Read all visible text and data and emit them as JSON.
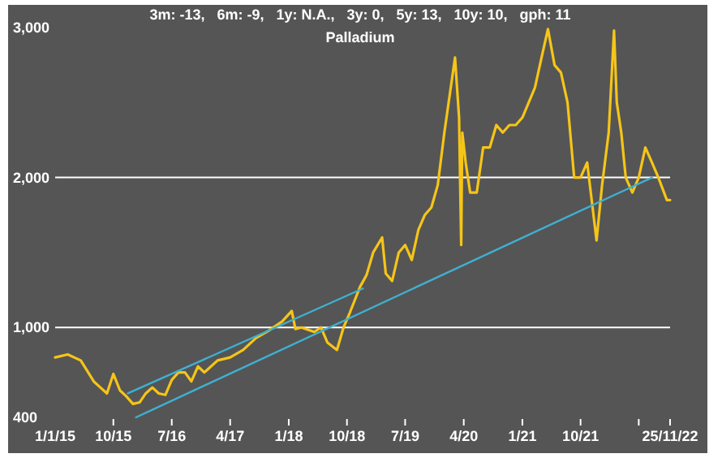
{
  "chart_data": {
    "type": "line",
    "title": "Palladium",
    "subtitle": "3m: -13,   6m: -9,   1y: N.A.,   3y: 0,   5y: 13,   10y: 10,   gph: 11",
    "x": [
      "2015-01-01",
      "2015-03-01",
      "2015-05-01",
      "2015-07-01",
      "2015-08-01",
      "2015-09-01",
      "2015-10-01",
      "2015-11-01",
      "2015-12-01",
      "2016-01-01",
      "2016-02-01",
      "2016-03-01",
      "2016-04-01",
      "2016-05-01",
      "2016-06-01",
      "2016-07-01",
      "2016-08-01",
      "2016-09-01",
      "2016-10-01",
      "2016-11-01",
      "2016-12-01",
      "2017-02-01",
      "2017-04-01",
      "2017-06-01",
      "2017-08-01",
      "2017-10-01",
      "2017-12-01",
      "2018-01-15",
      "2018-02-01",
      "2018-03-01",
      "2018-05-01",
      "2018-06-01",
      "2018-07-01",
      "2018-08-15",
      "2018-09-15",
      "2018-10-15",
      "2018-12-01",
      "2019-01-01",
      "2019-02-01",
      "2019-03-15",
      "2019-04-01",
      "2019-05-01",
      "2019-06-01",
      "2019-07-01",
      "2019-08-01",
      "2019-09-01",
      "2019-10-01",
      "2019-11-01",
      "2019-12-01",
      "2020-01-01",
      "2020-02-20",
      "2020-03-10",
      "2020-03-20",
      "2020-03-25",
      "2020-04-10",
      "2020-05-01",
      "2020-06-01",
      "2020-07-01",
      "2020-08-01",
      "2020-09-01",
      "2020-10-01",
      "2020-11-01",
      "2020-12-01",
      "2021-01-01",
      "2021-03-01",
      "2021-04-01",
      "2021-05-01",
      "2021-06-01",
      "2021-07-01",
      "2021-08-01",
      "2021-09-01",
      "2021-10-01",
      "2021-11-01",
      "2021-12-15",
      "2022-01-10",
      "2022-02-10",
      "2022-03-07",
      "2022-03-20",
      "2022-04-10",
      "2022-05-01",
      "2022-06-01",
      "2022-07-01",
      "2022-08-01",
      "2022-09-01",
      "2022-10-01",
      "2022-11-10",
      "2022-11-25"
    ],
    "ylim": [
      400,
      3000
    ],
    "yticks": [
      400,
      {
        "value": 1000,
        "label": "1,000"
      },
      {
        "value": 2000,
        "label": "2,000"
      },
      {
        "value": 3000,
        "label": "3,000"
      }
    ],
    "xlim": [
      "2015-01-01",
      "2022-11-25"
    ],
    "xticks": [
      {
        "value": "2015-01-01",
        "label": "1/1/15"
      },
      {
        "value": "2015-10-01",
        "label": "10/15"
      },
      {
        "value": "2016-07-01",
        "label": "7/16"
      },
      {
        "value": "2017-04-01",
        "label": "4/17"
      },
      {
        "value": "2018-01-01",
        "label": "1/18"
      },
      {
        "value": "2018-10-01",
        "label": "10/18"
      },
      {
        "value": "2019-07-01",
        "label": "7/19"
      },
      {
        "value": "2020-04-01",
        "label": "4/20"
      },
      {
        "value": "2021-01-01",
        "label": "1/21"
      },
      {
        "value": "2021-10-01",
        "label": "10/21"
      },
      {
        "value": "2022-07-01",
        "label": null
      },
      {
        "value": "2022-11-25",
        "label": "25/11/22"
      }
    ],
    "series": [
      {
        "color": "#f5c518",
        "values": [
          800,
          820,
          780,
          640,
          600,
          560,
          690,
          580,
          540,
          490,
          500,
          560,
          600,
          560,
          550,
          650,
          700,
          700,
          640,
          740,
          700,
          780,
          800,
          850,
          930,
          980,
          1040,
          1110,
          990,
          1000,
          970,
          1000,
          900,
          850,
          1000,
          1100,
          1270,
          1350,
          1500,
          1600,
          1360,
          1310,
          1500,
          1550,
          1450,
          1650,
          1750,
          1800,
          1950,
          2300,
          2800,
          2400,
          1550,
          2300,
          2100,
          1900,
          1900,
          2200,
          2200,
          2350,
          2300,
          2350,
          2350,
          2400,
          2600,
          2800,
          2990,
          2750,
          2700,
          2500,
          2000,
          2000,
          2100,
          1580,
          1950,
          2300,
          2980,
          2500,
          2300,
          2000,
          1900,
          2000,
          2200,
          2100,
          2000,
          1850,
          1850
        ]
      },
      {
        "color": "#3fb0d0",
        "x": [
          "2016-01-15",
          "2022-09-01"
        ],
        "values": [
          400,
          2000
        ]
      },
      {
        "color": "#3fb0d0",
        "x": [
          "2015-12-08",
          "2018-12-15"
        ],
        "values": [
          560,
          1260
        ]
      }
    ],
    "ref_lines": [
      {
        "axis": "y",
        "value": 1000,
        "color": "#ffffff"
      },
      {
        "axis": "y",
        "value": 2000,
        "color": "#ffffff"
      }
    ]
  }
}
